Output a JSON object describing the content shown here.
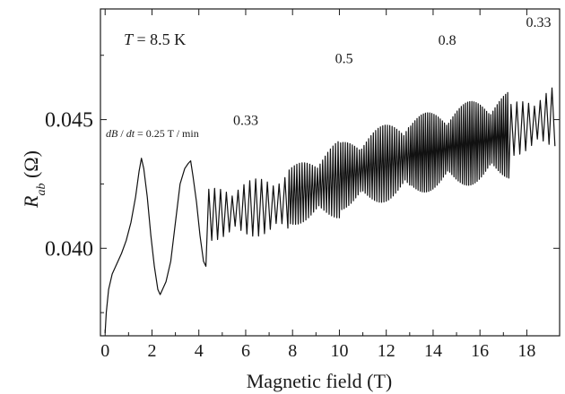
{
  "chart_data": {
    "type": "line",
    "xlabel": "Magnetic field (T)",
    "ylabel_main": "R",
    "ylabel_sub": "ab",
    "ylabel_unit": " (Ω)",
    "xlim": [
      -0.2,
      19.4
    ],
    "ylim": [
      0.0366,
      0.0493
    ],
    "x_ticks": [
      0,
      2,
      4,
      6,
      8,
      10,
      12,
      14,
      16,
      18
    ],
    "x_tick_labels": [
      "0",
      "2",
      "4",
      "6",
      "8",
      "10",
      "12",
      "14",
      "16",
      "18"
    ],
    "y_ticks": [
      0.04,
      0.045
    ],
    "y_tick_labels": [
      "0.040",
      "0.045"
    ],
    "temperature_label": {
      "italic": "T",
      "rest": " = 8.5 K"
    },
    "sweep_label": {
      "italic1": "dB",
      "mid": " / ",
      "italic2": "dt",
      "rest": " = 0.25 T / min"
    },
    "rate_labels": [
      {
        "text": "0.33",
        "x": 6.0,
        "y": 0.0448
      },
      {
        "text": "0.5",
        "x": 10.2,
        "y": 0.0472
      },
      {
        "text": "0.8",
        "x": 14.6,
        "y": 0.0479
      },
      {
        "text": "0.33",
        "x": 18.5,
        "y": 0.0486
      }
    ],
    "series": [
      {
        "points": [
          [
            0.0,
            0.0367
          ],
          [
            0.05,
            0.0375
          ],
          [
            0.15,
            0.0384
          ],
          [
            0.3,
            0.039
          ],
          [
            0.5,
            0.0394
          ],
          [
            0.7,
            0.0398
          ],
          [
            0.9,
            0.0403
          ],
          [
            1.1,
            0.041
          ],
          [
            1.3,
            0.042
          ],
          [
            1.45,
            0.043
          ],
          [
            1.55,
            0.0435
          ],
          [
            1.65,
            0.0431
          ],
          [
            1.8,
            0.042
          ],
          [
            1.95,
            0.0405
          ],
          [
            2.1,
            0.0393
          ],
          [
            2.25,
            0.0384
          ],
          [
            2.35,
            0.0382
          ],
          [
            2.45,
            0.0384
          ],
          [
            2.6,
            0.0387
          ],
          [
            2.8,
            0.0395
          ],
          [
            3.0,
            0.041
          ],
          [
            3.2,
            0.0425
          ],
          [
            3.4,
            0.0431
          ],
          [
            3.55,
            0.0433
          ],
          [
            3.65,
            0.0434
          ],
          [
            3.75,
            0.0428
          ],
          [
            3.9,
            0.0418
          ],
          [
            4.05,
            0.0405
          ],
          [
            4.2,
            0.0395
          ],
          [
            4.3,
            0.0393
          ]
        ],
        "osc": {
          "start": 4.3,
          "end": 19.3,
          "segments": [
            {
              "from": 4.3,
              "to": 7.8,
              "period": 0.25,
              "center_a": 0.0413,
              "center_b": 0.0418,
              "amp_a": 0.002,
              "amp_b": 0.0024
            },
            {
              "from": 7.8,
              "to": 10.0,
              "period": 0.11,
              "center_a": 0.042,
              "center_b": 0.0427,
              "amp_a": 0.0022,
              "amp_b": 0.003
            },
            {
              "from": 10.0,
              "to": 13.0,
              "period": 0.1,
              "center_a": 0.0428,
              "center_b": 0.0436,
              "amp_a": 0.0026,
              "amp_b": 0.0032
            },
            {
              "from": 13.0,
              "to": 17.2,
              "period": 0.09,
              "center_a": 0.0436,
              "center_b": 0.0444,
              "amp_a": 0.003,
              "amp_b": 0.0034
            },
            {
              "from": 17.2,
              "to": 19.3,
              "period": 0.25,
              "center_a": 0.0446,
              "center_b": 0.0452,
              "amp_a": 0.002,
              "amp_b": 0.0024
            }
          ]
        }
      }
    ]
  }
}
